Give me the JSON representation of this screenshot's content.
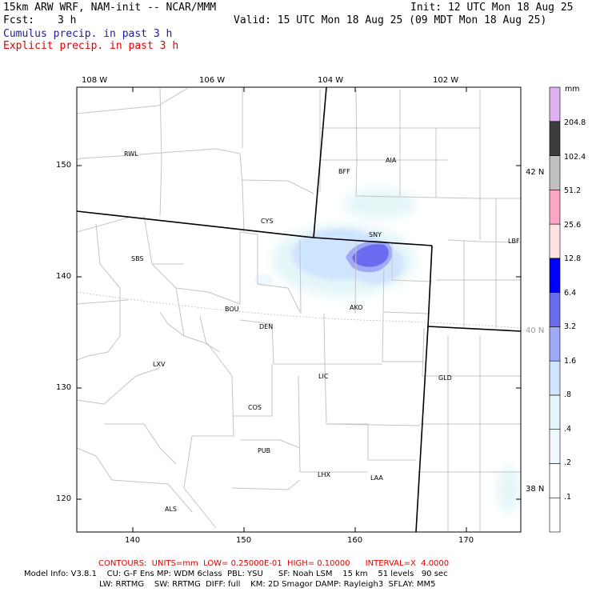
{
  "header": {
    "model_line": "15km ARW WRF, NAM-init -- NCAR/MMM",
    "init_line": "Init: 12 UTC Mon 18 Aug 25",
    "fcst_label": "Fcst:",
    "fcst_value": "3 h",
    "valid_line": "Valid: 15 UTC Mon 18 Aug 25 (09 MDT Mon 18 Aug 25)",
    "cumulus_label": "Cumulus precip. in past 3 h",
    "explicit_label": "Explicit precip. in past 3 h"
  },
  "top_ticks": [
    "108 W",
    "106 W",
    "104 W",
    "102 W"
  ],
  "bottom_ticks": [
    "140",
    "150",
    "160",
    "170"
  ],
  "left_ticks": [
    "150",
    "140",
    "130",
    "120"
  ],
  "right_ticks": [
    "42 N",
    "40 N",
    "38 N"
  ],
  "cities": [
    {
      "label": "RWL"
    },
    {
      "label": "BFF"
    },
    {
      "label": "AIA"
    },
    {
      "label": "CYS"
    },
    {
      "label": "SNY"
    },
    {
      "label": "LBF"
    },
    {
      "label": "SBS"
    },
    {
      "label": "BOU"
    },
    {
      "label": "AKO"
    },
    {
      "label": "DEN"
    },
    {
      "label": "LXV"
    },
    {
      "label": "LIC"
    },
    {
      "label": "GLD"
    },
    {
      "label": "COS"
    },
    {
      "label": "PUB"
    },
    {
      "label": "LHX"
    },
    {
      "label": "LAA"
    },
    {
      "label": "ALS"
    }
  ],
  "legend": {
    "unit": "mm",
    "colors": [
      "#ffffff",
      "#f0f8ff",
      "#e4f6f8",
      "#cfe4fe",
      "#a0a8f8",
      "#6b6bf0",
      "#0000ff",
      "#ffe2e2",
      "#ffa6c6",
      "#c0c0c0",
      "#3c3c3c",
      "#ddb2ee"
    ],
    "labels": [
      ".1",
      ".2",
      ".4",
      ".8",
      "1.6",
      "3.2",
      "6.4",
      "12.8",
      "25.6",
      "51.2",
      "102.4",
      "204.8"
    ]
  },
  "footer": {
    "contours": "CONTOURS:  UNITS=mm  LOW= 0.25000E-01  HIGH= 0.10000      INTERVAL=X  4.0000",
    "model_info_1": "Model Info: V3.8.1    CU: G-F Ens MP: WDM 6class  PBL: YSU      SF: Noah LSM    15 km    51 levels   90 sec",
    "model_info_2": "LW: RRTMG    SW: RRTMG  DIFF: full    KM: 2D Smagor DAMP: Rayleigh3  SFLAY: MM5"
  }
}
